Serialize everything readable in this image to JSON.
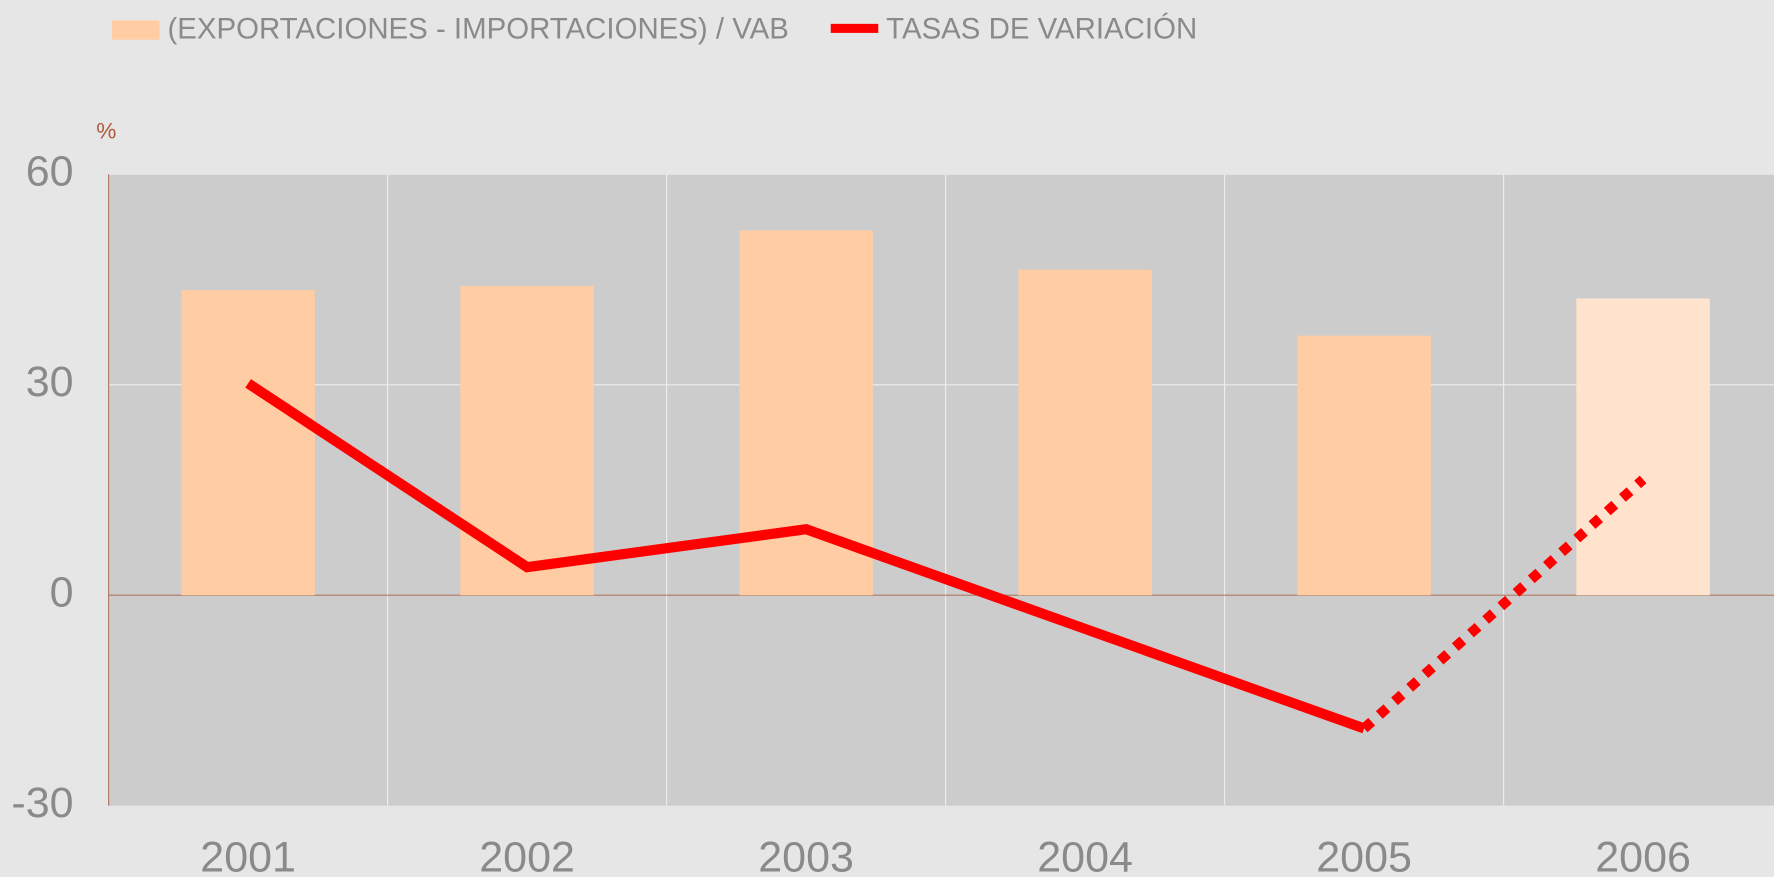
{
  "chart_data": {
    "type": "bar-line",
    "y_label": "%",
    "categories": [
      "2001",
      "2002",
      "2003",
      "2004",
      "2005",
      "2006"
    ],
    "ylim": [
      -30,
      60
    ],
    "yticks": [
      -30,
      0,
      30,
      60
    ],
    "grid": true,
    "legend": "top-left",
    "projected": [
      false,
      false,
      false,
      false,
      false,
      true
    ],
    "series": [
      {
        "name": "(EXPORTACIONES - IMPORTACIONES) / VAB",
        "type": "bar",
        "color": "#ffcca3",
        "projected_color": "#ffe3cc",
        "values": [
          43.5,
          44.1,
          52.0,
          46.4,
          37.0,
          42.3
        ]
      },
      {
        "name": "TASAS DE VARIACIÓN",
        "type": "line",
        "color": "#ff0000",
        "values": [
          30.2,
          4.0,
          9.4,
          -4.8,
          -19.0,
          16.5
        ]
      }
    ]
  }
}
